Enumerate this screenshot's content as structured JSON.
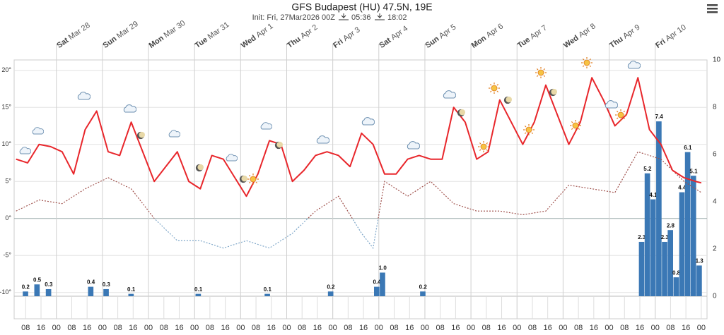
{
  "chart_data": {
    "type": "meteogram",
    "title": "GFS Budapest (HU) 47.5N, 19E",
    "subtitle": "Init: Fri, 27Mar2026 00Z",
    "sunrise": "05:36",
    "sunset": "18:02",
    "xlim": [
      2,
      363
    ],
    "ylim": [
      -10.5,
      21.4
    ],
    "yticks": [
      {
        "value": 20,
        "label": "20°"
      },
      {
        "value": 15,
        "label": "15°"
      },
      {
        "value": 10,
        "label": "10°"
      },
      {
        "value": 5,
        "label": "5°"
      },
      {
        "value": 0,
        "label": "0°"
      },
      {
        "value": -5,
        "label": "-5°"
      },
      {
        "value": -10,
        "label": "-10°"
      }
    ],
    "y2lim": [
      0,
      10
    ],
    "y2ticks": [
      0,
      2,
      4,
      6,
      8,
      10
    ],
    "grid": true,
    "day_ticks": [
      {
        "value": 24,
        "day": "Sat",
        "date": "Mar 28"
      },
      {
        "value": 48,
        "day": "Sun",
        "date": "Mar 29"
      },
      {
        "value": 72,
        "day": "Mon",
        "date": "Mar 30"
      },
      {
        "value": 96,
        "day": "Tue",
        "date": "Mar 31"
      },
      {
        "value": 120,
        "day": "Wed",
        "date": "Apr 1"
      },
      {
        "value": 144,
        "day": "Thu",
        "date": "Apr 2"
      },
      {
        "value": 168,
        "day": "Fri",
        "date": "Apr 3"
      },
      {
        "value": 192,
        "day": "Sat",
        "date": "Apr 4"
      },
      {
        "value": 216,
        "day": "Sun",
        "date": "Apr 5"
      },
      {
        "value": 240,
        "day": "Mon",
        "date": "Apr 6"
      },
      {
        "value": 264,
        "day": "Tue",
        "date": "Apr 7"
      },
      {
        "value": 288,
        "day": "Wed",
        "date": "Apr 8"
      },
      {
        "value": 312,
        "day": "Thu",
        "date": "Apr 9"
      },
      {
        "value": 336,
        "day": "Fri",
        "date": "Apr 10"
      }
    ],
    "xticks": [
      {
        "value": 8,
        "label": "08"
      },
      {
        "value": 16,
        "label": "16"
      },
      {
        "value": 24,
        "label": "00"
      },
      {
        "value": 32,
        "label": "08"
      },
      {
        "value": 40,
        "label": "16"
      },
      {
        "value": 48,
        "label": "00"
      },
      {
        "value": 56,
        "label": "08"
      },
      {
        "value": 64,
        "label": "16"
      },
      {
        "value": 72,
        "label": "00"
      },
      {
        "value": 80,
        "label": "08"
      },
      {
        "value": 88,
        "label": "16"
      },
      {
        "value": 96,
        "label": "00"
      },
      {
        "value": 104,
        "label": "08"
      },
      {
        "value": 112,
        "label": "16"
      },
      {
        "value": 120,
        "label": "00"
      },
      {
        "value": 128,
        "label": "08"
      },
      {
        "value": 136,
        "label": "16"
      },
      {
        "value": 144,
        "label": "00"
      },
      {
        "value": 152,
        "label": "08"
      },
      {
        "value": 160,
        "label": "16"
      },
      {
        "value": 168,
        "label": "00"
      },
      {
        "value": 176,
        "label": "08"
      },
      {
        "value": 184,
        "label": "16"
      },
      {
        "value": 192,
        "label": "00"
      },
      {
        "value": 200,
        "label": "08"
      },
      {
        "value": 208,
        "label": "16"
      },
      {
        "value": 216,
        "label": "00"
      },
      {
        "value": 224,
        "label": "08"
      },
      {
        "value": 232,
        "label": "16"
      },
      {
        "value": 240,
        "label": "00"
      },
      {
        "value": 248,
        "label": "08"
      },
      {
        "value": 256,
        "label": "16"
      },
      {
        "value": 264,
        "label": "00"
      },
      {
        "value": 272,
        "label": "08"
      },
      {
        "value": 280,
        "label": "16"
      },
      {
        "value": 288,
        "label": "00"
      },
      {
        "value": 296,
        "label": "08"
      },
      {
        "value": 304,
        "label": "16"
      },
      {
        "value": 312,
        "label": "00"
      },
      {
        "value": 320,
        "label": "08"
      },
      {
        "value": 328,
        "label": "16"
      },
      {
        "value": 336,
        "label": "00"
      },
      {
        "value": 344,
        "label": "08"
      },
      {
        "value": 352,
        "label": "16"
      },
      {
        "value": 360,
        "label": "00"
      }
    ],
    "temperature": {
      "color": "#e8262b",
      "x": [
        3,
        9,
        15,
        21,
        27,
        33,
        39,
        45,
        51,
        57,
        63,
        69,
        75,
        81,
        87,
        93,
        99,
        105,
        111,
        117,
        123,
        129,
        135,
        141,
        147,
        153,
        159,
        165,
        171,
        177,
        183,
        189,
        195,
        201,
        207,
        213,
        219,
        225,
        231,
        237,
        243,
        249,
        255,
        261,
        267,
        273,
        279,
        285,
        291,
        297,
        303,
        309,
        315,
        321,
        327,
        333,
        339,
        345,
        351,
        357,
        360
      ],
      "values": [
        8,
        7.5,
        10,
        9.7,
        9,
        6,
        12,
        14.5,
        9,
        8.5,
        13,
        9,
        5,
        7,
        9,
        5,
        4,
        8.5,
        8,
        5.5,
        3,
        6,
        10.5,
        10,
        5,
        6.5,
        8.5,
        9,
        8.5,
        7,
        11.5,
        10,
        6,
        6,
        8,
        8.5,
        8,
        8,
        15,
        13,
        8,
        9,
        16,
        13,
        10,
        13,
        18,
        14,
        10,
        13,
        19,
        16,
        12.5,
        14,
        19,
        12,
        10,
        6.5,
        5.5,
        5,
        4.8
      ]
    },
    "dewpoint": {
      "color": "#a0524d",
      "below_zero_color": "#7fa7c9",
      "x": [
        3,
        15,
        27,
        39,
        51,
        63,
        75,
        87,
        99,
        111,
        123,
        135,
        147,
        159,
        171,
        183,
        189,
        195,
        207,
        219,
        231,
        243,
        255,
        267,
        279,
        291,
        303,
        315,
        327,
        339,
        351,
        360
      ],
      "values": [
        1,
        2.5,
        2,
        4,
        5.5,
        4,
        0,
        -3,
        -3,
        -4,
        -3,
        -4,
        -2,
        1,
        3,
        -2,
        -4,
        5,
        3,
        5,
        2,
        1,
        1,
        0.5,
        1,
        4.5,
        4,
        3.5,
        9,
        8,
        5,
        3.5
      ]
    },
    "precipitation": {
      "color": "#3b78b5",
      "x": [
        8,
        14,
        20,
        42,
        50,
        63,
        98,
        134,
        167,
        191,
        194,
        215,
        329,
        332,
        335,
        338,
        341,
        344,
        347,
        350,
        353,
        356,
        359
      ],
      "values": [
        0.2,
        0.5,
        0.3,
        0.4,
        0.3,
        0.1,
        0.1,
        0.1,
        0.2,
        0.4,
        1.0,
        0.2,
        2.3,
        5.2,
        4.1,
        7.4,
        2.3,
        2.8,
        0.8,
        4.4,
        6.1,
        5.1,
        1.3
      ],
      "value_labels": [
        "0.2",
        "0.5",
        "0.3",
        "0.4",
        "0.3",
        "0.1",
        "0.1",
        "0.1",
        "0.2",
        "0.4",
        "1.0",
        "0.2",
        "2.3",
        "5.2",
        "4.1",
        "7.4",
        "2.3",
        "2.8",
        "0.8",
        "4.4",
        "6.1",
        "5.1",
        "1.3"
      ]
    }
  }
}
